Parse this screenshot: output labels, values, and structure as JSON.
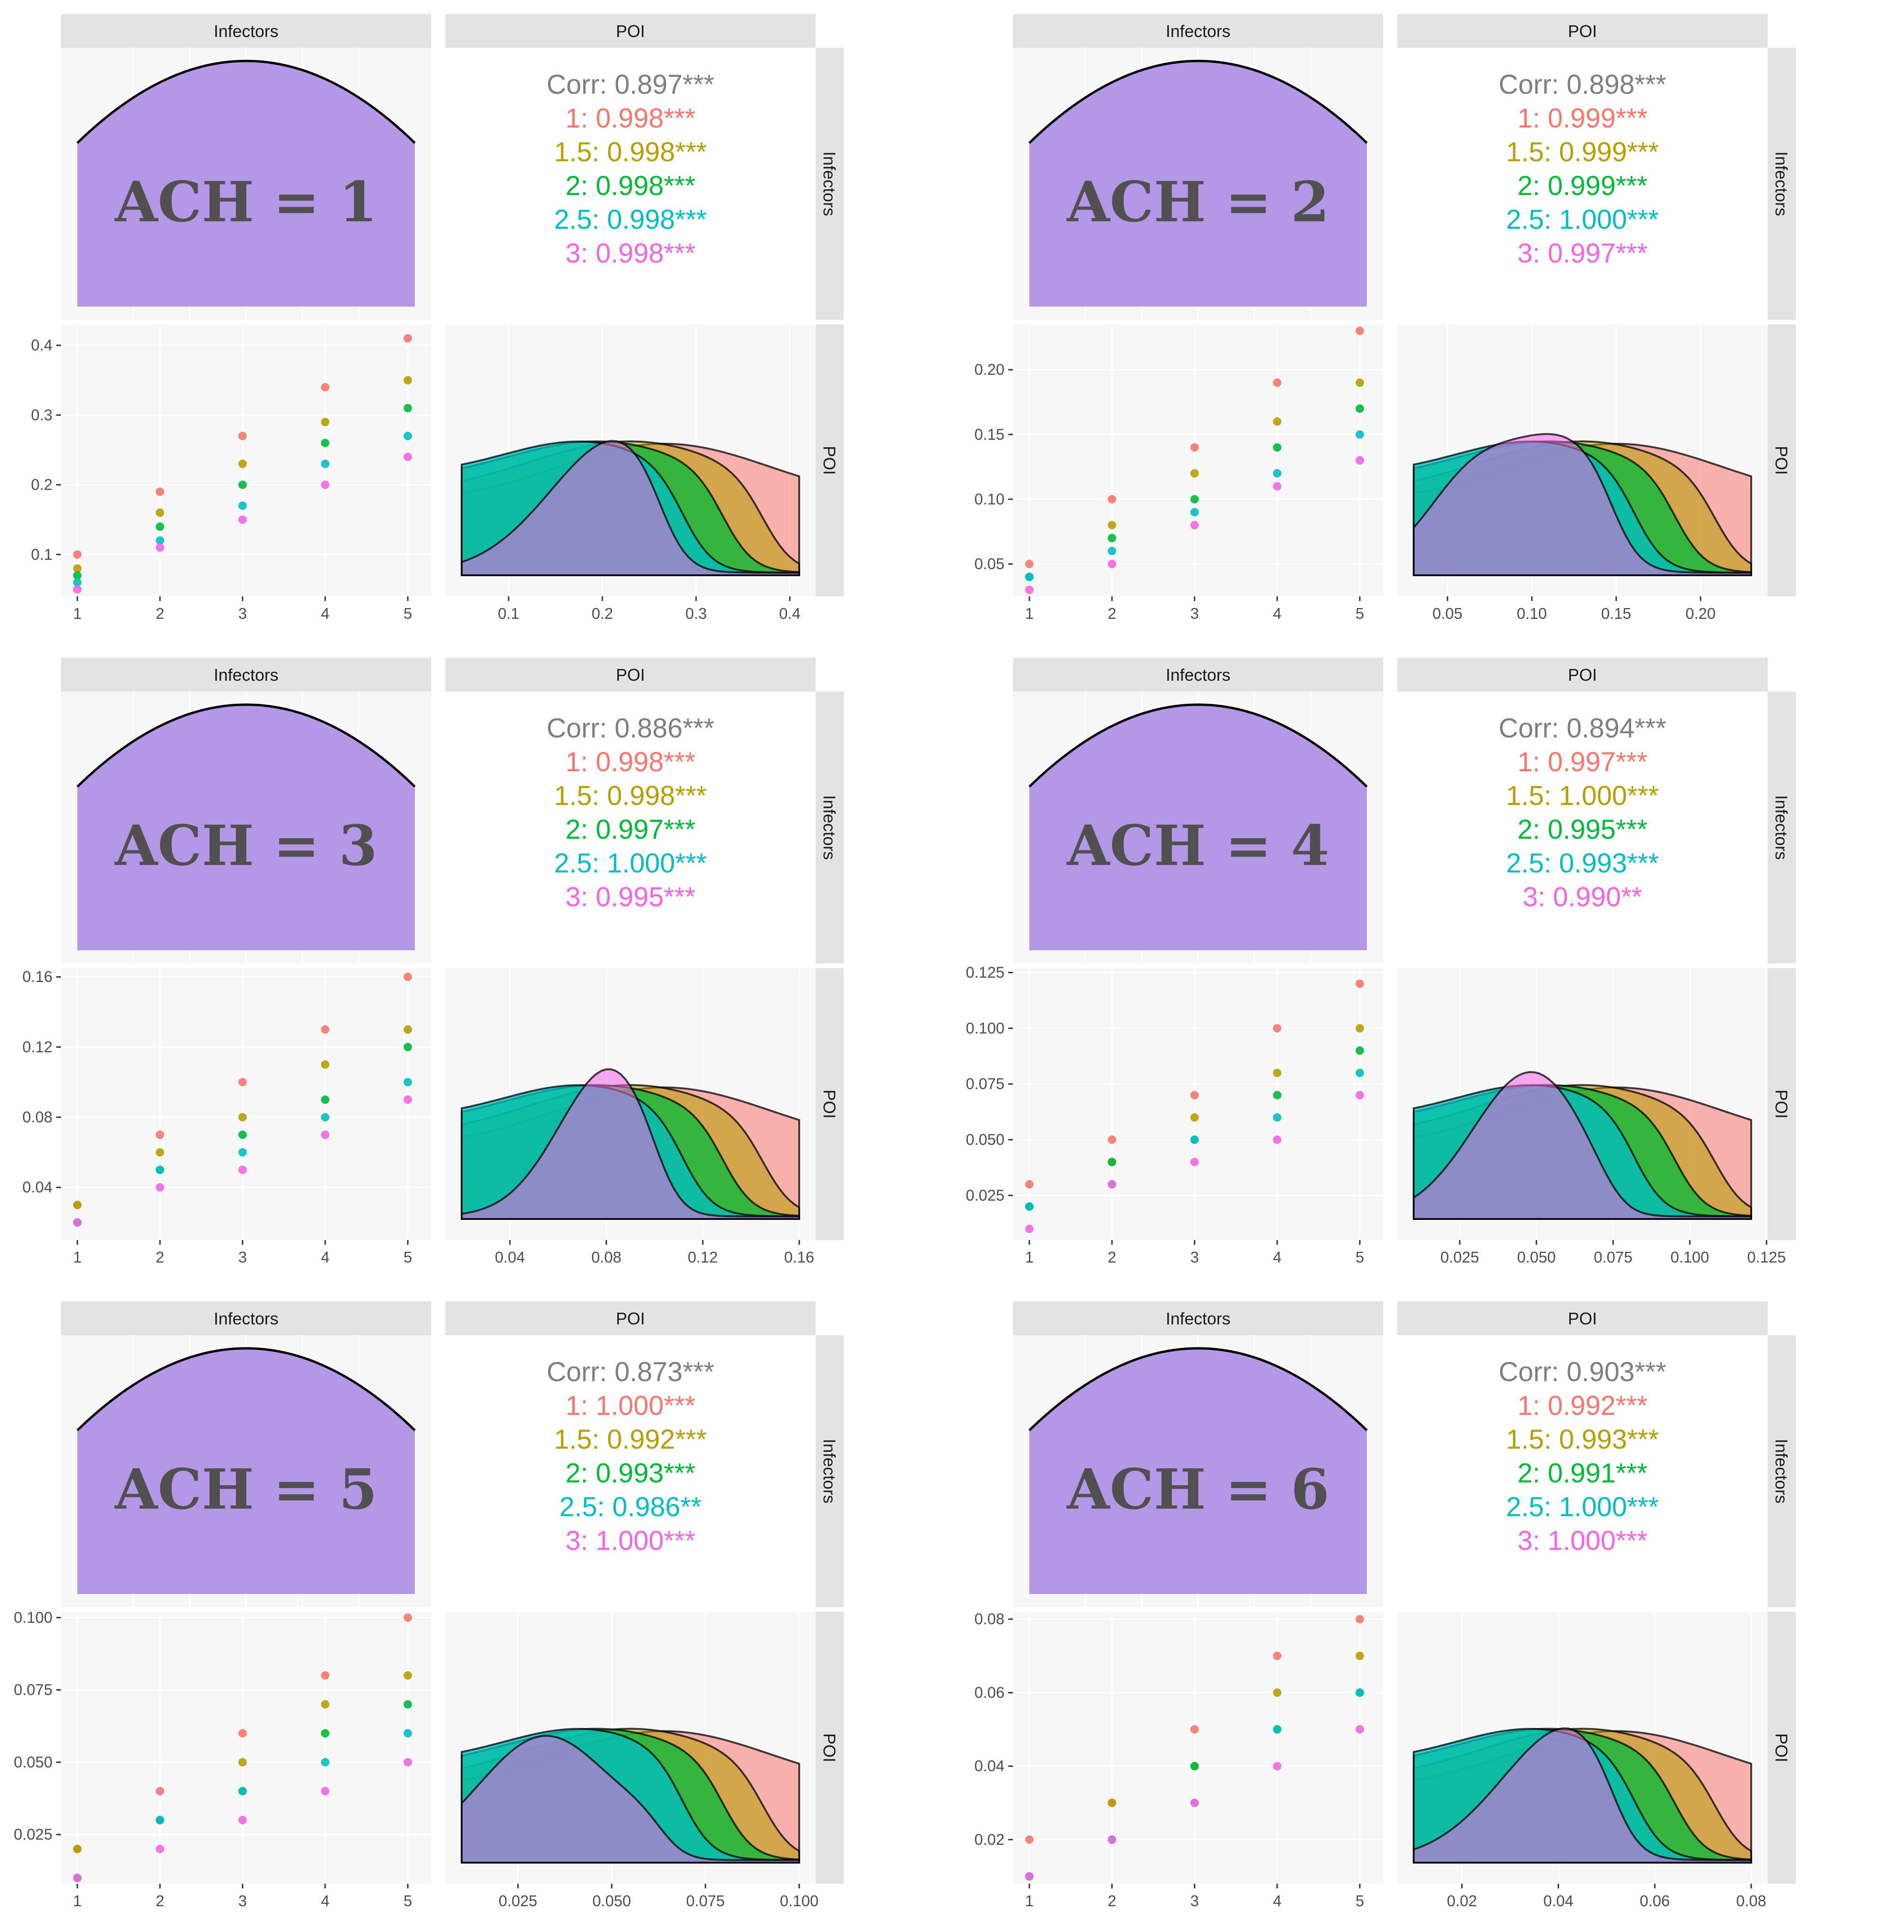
{
  "colors": {
    "1": "#F8766D",
    "1.5": "#B79F00",
    "2": "#00BA38",
    "2.5": "#00BFC4",
    "3": "#F564E3",
    "corr_overall": "#7F7F7F",
    "diag_fill": "#B497E7",
    "panel_bg": "#F7F7F7",
    "strip_bg": "#E3E3E3",
    "grid": "#FFFFFF"
  },
  "groups": [
    "1",
    "1.5",
    "2",
    "2.5",
    "3"
  ],
  "chart_data": [
    {
      "type": "pairs",
      "panel_label": "ACH = 1",
      "variables": [
        "Infectors",
        "POI"
      ],
      "correlation": {
        "overall": "Corr: 0.897***",
        "by_group": [
          "1: 0.998***",
          "1.5: 0.998***",
          "2: 0.998***",
          "2.5: 0.998***",
          "3: 0.998***"
        ]
      },
      "scatter": {
        "x": [
          1,
          2,
          3,
          4,
          5
        ],
        "series": [
          {
            "name": "1",
            "values": [
              0.1,
              0.19,
              0.27,
              0.34,
              0.41
            ]
          },
          {
            "name": "1.5",
            "values": [
              0.08,
              0.16,
              0.23,
              0.29,
              0.35
            ]
          },
          {
            "name": "2",
            "values": [
              0.07,
              0.14,
              0.2,
              0.26,
              0.31
            ]
          },
          {
            "name": "2.5",
            "values": [
              0.06,
              0.12,
              0.17,
              0.23,
              0.27
            ]
          },
          {
            "name": "3",
            "values": [
              0.05,
              0.11,
              0.15,
              0.2,
              0.24
            ]
          }
        ]
      },
      "x_ticks": [
        "1",
        "2",
        "3",
        "4",
        "5"
      ],
      "y_range": [
        0.04,
        0.43
      ],
      "y_ticks": [
        {
          "value": 0.1,
          "label": "0.1"
        },
        {
          "value": 0.2,
          "label": "0.2"
        },
        {
          "value": 0.3,
          "label": "0.3"
        },
        {
          "value": 0.4,
          "label": "0.4"
        }
      ],
      "density_x_range": [
        0.05,
        0.41
      ],
      "density_x_ticks": [
        {
          "value": 0.1,
          "label": "0.1"
        },
        {
          "value": 0.2,
          "label": "0.2"
        },
        {
          "value": 0.3,
          "label": "0.3"
        },
        {
          "value": 0.4,
          "label": "0.4"
        }
      ]
    },
    {
      "type": "pairs",
      "panel_label": "ACH = 2",
      "variables": [
        "Infectors",
        "POI"
      ],
      "correlation": {
        "overall": "Corr: 0.898***",
        "by_group": [
          "1: 0.999***",
          "1.5: 0.999***",
          "2: 0.999***",
          "2.5: 1.000***",
          "3: 0.997***"
        ]
      },
      "scatter": {
        "x": [
          1,
          2,
          3,
          4,
          5
        ],
        "series": [
          {
            "name": "1",
            "values": [
              0.05,
              0.1,
              0.14,
              0.19,
              0.23
            ]
          },
          {
            "name": "1.5",
            "values": [
              0.04,
              0.08,
              0.12,
              0.16,
              0.19
            ]
          },
          {
            "name": "2",
            "values": [
              0.04,
              0.07,
              0.1,
              0.14,
              0.17
            ]
          },
          {
            "name": "2.5",
            "values": [
              0.04,
              0.06,
              0.09,
              0.12,
              0.15
            ]
          },
          {
            "name": "3",
            "values": [
              0.03,
              0.05,
              0.08,
              0.11,
              0.13
            ]
          }
        ]
      },
      "x_ticks": [
        "1",
        "2",
        "3",
        "4",
        "5"
      ],
      "y_range": [
        0.025,
        0.235
      ],
      "y_ticks": [
        {
          "value": 0.05,
          "label": "0.05"
        },
        {
          "value": 0.1,
          "label": "0.10"
        },
        {
          "value": 0.15,
          "label": "0.15"
        },
        {
          "value": 0.2,
          "label": "0.20"
        }
      ],
      "density_x_range": [
        0.03,
        0.23
      ],
      "density_x_ticks": [
        {
          "value": 0.05,
          "label": "0.05"
        },
        {
          "value": 0.1,
          "label": "0.10"
        },
        {
          "value": 0.15,
          "label": "0.15"
        },
        {
          "value": 0.2,
          "label": "0.20"
        }
      ]
    },
    {
      "type": "pairs",
      "panel_label": "ACH = 3",
      "variables": [
        "Infectors",
        "POI"
      ],
      "correlation": {
        "overall": "Corr: 0.886***",
        "by_group": [
          "1: 0.998***",
          "1.5: 0.998***",
          "2: 0.997***",
          "2.5: 1.000***",
          "3: 0.995***"
        ]
      },
      "scatter": {
        "x": [
          1,
          2,
          3,
          4,
          5
        ],
        "series": [
          {
            "name": "1",
            "values": [
              0.03,
              0.07,
              0.1,
              0.13,
              0.16
            ]
          },
          {
            "name": "1.5",
            "values": [
              0.03,
              0.06,
              0.08,
              0.11,
              0.13
            ]
          },
          {
            "name": "2",
            "values": [
              0.02,
              0.05,
              0.07,
              0.09,
              0.12
            ]
          },
          {
            "name": "2.5",
            "values": [
              0.02,
              0.05,
              0.06,
              0.08,
              0.1
            ]
          },
          {
            "name": "3",
            "values": [
              0.02,
              0.04,
              0.05,
              0.07,
              0.09
            ]
          }
        ]
      },
      "x_ticks": [
        "1",
        "2",
        "3",
        "4",
        "5"
      ],
      "y_range": [
        0.01,
        0.165
      ],
      "y_ticks": [
        {
          "value": 0.04,
          "label": "0.04"
        },
        {
          "value": 0.08,
          "label": "0.08"
        },
        {
          "value": 0.12,
          "label": "0.12"
        },
        {
          "value": 0.16,
          "label": "0.16"
        }
      ],
      "density_x_range": [
        0.02,
        0.16
      ],
      "density_x_ticks": [
        {
          "value": 0.04,
          "label": "0.04"
        },
        {
          "value": 0.08,
          "label": "0.08"
        },
        {
          "value": 0.12,
          "label": "0.12"
        },
        {
          "value": 0.16,
          "label": "0.16"
        }
      ]
    },
    {
      "type": "pairs",
      "panel_label": "ACH = 4",
      "variables": [
        "Infectors",
        "POI"
      ],
      "correlation": {
        "overall": "Corr: 0.894***",
        "by_group": [
          "1: 0.997***",
          "1.5: 1.000***",
          "2: 0.995***",
          "2.5: 0.993***",
          "3: 0.990**"
        ]
      },
      "scatter": {
        "x": [
          1,
          2,
          3,
          4,
          5
        ],
        "series": [
          {
            "name": "1",
            "values": [
              0.03,
              0.05,
              0.07,
              0.1,
              0.12
            ]
          },
          {
            "name": "1.5",
            "values": [
              0.02,
              0.04,
              0.06,
              0.08,
              0.1
            ]
          },
          {
            "name": "2",
            "values": [
              0.02,
              0.04,
              0.05,
              0.07,
              0.09
            ]
          },
          {
            "name": "2.5",
            "values": [
              0.02,
              0.03,
              0.05,
              0.06,
              0.08
            ]
          },
          {
            "name": "3",
            "values": [
              0.01,
              0.03,
              0.04,
              0.05,
              0.07
            ]
          }
        ]
      },
      "x_ticks": [
        "1",
        "2",
        "3",
        "4",
        "5"
      ],
      "y_range": [
        0.005,
        0.127
      ],
      "y_ticks": [
        {
          "value": 0.025,
          "label": "0.025"
        },
        {
          "value": 0.05,
          "label": "0.050"
        },
        {
          "value": 0.075,
          "label": "0.075"
        },
        {
          "value": 0.1,
          "label": "0.100"
        },
        {
          "value": 0.125,
          "label": "0.125"
        }
      ],
      "density_x_range": [
        0.01,
        0.12
      ],
      "density_x_ticks": [
        {
          "value": 0.025,
          "label": "0.025"
        },
        {
          "value": 0.05,
          "label": "0.050"
        },
        {
          "value": 0.075,
          "label": "0.075"
        },
        {
          "value": 0.1,
          "label": "0.100"
        },
        {
          "value": 0.125,
          "label": "0.125"
        }
      ]
    },
    {
      "type": "pairs",
      "panel_label": "ACH = 5",
      "variables": [
        "Infectors",
        "POI"
      ],
      "correlation": {
        "overall": "Corr: 0.873***",
        "by_group": [
          "1: 1.000***",
          "1.5: 0.992***",
          "2: 0.993***",
          "2.5: 0.986**",
          "3: 1.000***"
        ]
      },
      "scatter": {
        "x": [
          1,
          2,
          3,
          4,
          5
        ],
        "series": [
          {
            "name": "1",
            "values": [
              0.02,
              0.04,
              0.06,
              0.08,
              0.1
            ]
          },
          {
            "name": "1.5",
            "values": [
              0.02,
              0.03,
              0.05,
              0.07,
              0.08
            ]
          },
          {
            "name": "2",
            "values": [
              0.01,
              0.03,
              0.04,
              0.06,
              0.07
            ]
          },
          {
            "name": "2.5",
            "values": [
              0.01,
              0.03,
              0.04,
              0.05,
              0.06
            ]
          },
          {
            "name": "3",
            "values": [
              0.01,
              0.02,
              0.03,
              0.04,
              0.05
            ]
          }
        ]
      },
      "x_ticks": [
        "1",
        "2",
        "3",
        "4",
        "5"
      ],
      "y_range": [
        0.008,
        0.102
      ],
      "y_ticks": [
        {
          "value": 0.025,
          "label": "0.025"
        },
        {
          "value": 0.05,
          "label": "0.050"
        },
        {
          "value": 0.075,
          "label": "0.075"
        },
        {
          "value": 0.1,
          "label": "0.100"
        }
      ],
      "density_x_range": [
        0.01,
        0.1
      ],
      "density_x_ticks": [
        {
          "value": 0.025,
          "label": "0.025"
        },
        {
          "value": 0.05,
          "label": "0.050"
        },
        {
          "value": 0.075,
          "label": "0.075"
        },
        {
          "value": 0.1,
          "label": "0.100"
        }
      ]
    },
    {
      "type": "pairs",
      "panel_label": "ACH = 6",
      "variables": [
        "Infectors",
        "POI"
      ],
      "correlation": {
        "overall": "Corr: 0.903***",
        "by_group": [
          "1: 0.992***",
          "1.5: 0.993***",
          "2: 0.991***",
          "2.5: 1.000***",
          "3: 1.000***"
        ]
      },
      "scatter": {
        "x": [
          1,
          2,
          3,
          4,
          5
        ],
        "series": [
          {
            "name": "1",
            "values": [
              0.02,
              0.03,
              0.05,
              0.07,
              0.08
            ]
          },
          {
            "name": "1.5",
            "values": [
              0.01,
              0.03,
              0.04,
              0.06,
              0.07
            ]
          },
          {
            "name": "2",
            "values": [
              0.01,
              0.02,
              0.04,
              0.05,
              0.06
            ]
          },
          {
            "name": "2.5",
            "values": [
              0.01,
              0.02,
              0.03,
              0.05,
              0.06
            ]
          },
          {
            "name": "3",
            "values": [
              0.01,
              0.02,
              0.03,
              0.04,
              0.05
            ]
          }
        ]
      },
      "x_ticks": [
        "1",
        "2",
        "3",
        "4",
        "5"
      ],
      "y_range": [
        0.008,
        0.082
      ],
      "y_ticks": [
        {
          "value": 0.02,
          "label": "0.02"
        },
        {
          "value": 0.04,
          "label": "0.04"
        },
        {
          "value": 0.06,
          "label": "0.06"
        },
        {
          "value": 0.08,
          "label": "0.08"
        }
      ],
      "density_x_range": [
        0.01,
        0.08
      ],
      "density_x_ticks": [
        {
          "value": 0.02,
          "label": "0.02"
        },
        {
          "value": 0.04,
          "label": "0.04"
        },
        {
          "value": 0.06,
          "label": "0.06"
        },
        {
          "value": 0.08,
          "label": "0.08"
        }
      ]
    }
  ]
}
